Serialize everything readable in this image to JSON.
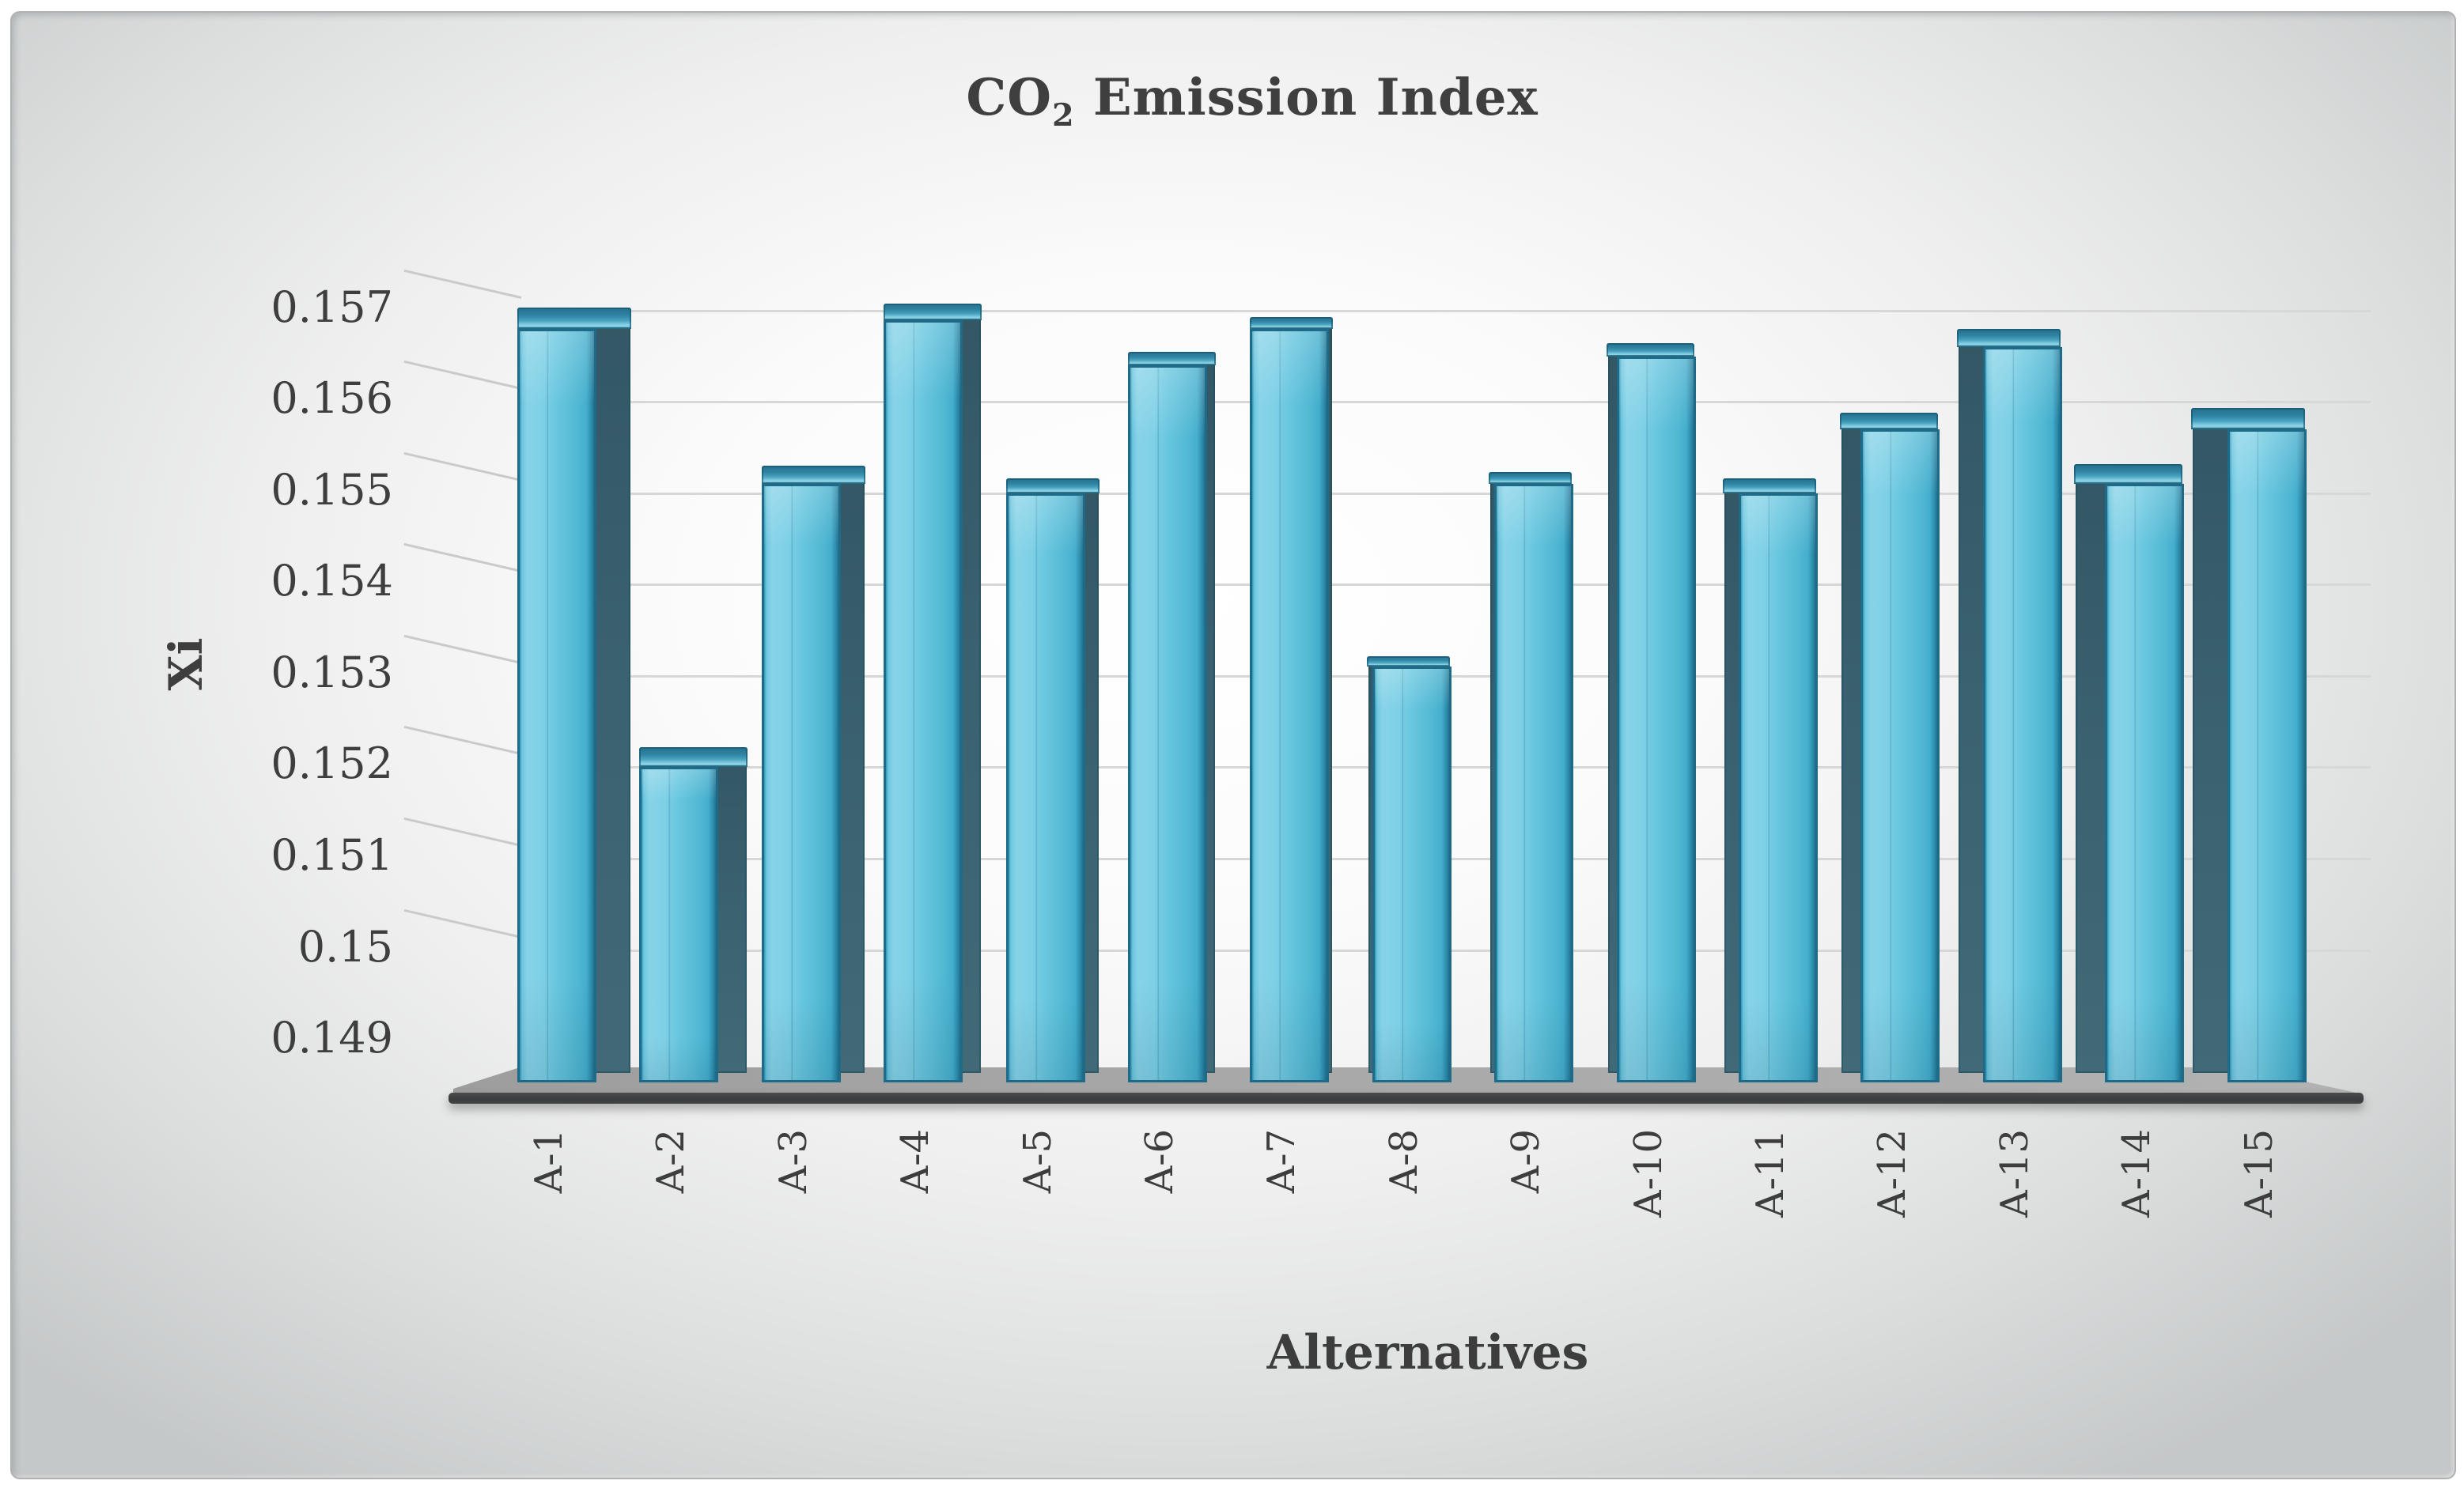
{
  "title": {
    "main_pre": "CO",
    "subscript": "2",
    "main_post": " Emission Index"
  },
  "y_axis": {
    "title": "Xi",
    "tick_labels": [
      "0.157",
      "0.156",
      "0.155",
      "0.154",
      "0.153",
      "0.152",
      "0.151",
      "0.15",
      "0.149"
    ]
  },
  "x_axis": {
    "title": "Alternatives"
  },
  "chart_data": {
    "type": "bar",
    "title": "CO2 Emission Index",
    "xlabel": "Alternatives",
    "ylabel": "Xi",
    "categories": [
      "A-1",
      "A-2",
      "A-3",
      "A-4",
      "A-5",
      "A-6",
      "A-7",
      "A-8",
      "A-9",
      "A-10",
      "A-11",
      "A-12",
      "A-13",
      "A-14",
      "A-15"
    ],
    "values": [
      0.1568,
      0.152,
      0.1551,
      0.1569,
      0.155,
      0.1564,
      0.1568,
      0.1531,
      0.1551,
      0.1565,
      0.155,
      0.1557,
      0.1566,
      0.1551,
      0.1557
    ],
    "ylim": [
      0.149,
      0.157
    ],
    "ytick_step": 0.001,
    "grid": true,
    "legend": "none",
    "style": "3d-beveled-columns"
  },
  "colors": {
    "bar_front": "#5ec0da",
    "bar_front_highlight": "#87d3e8",
    "bar_outline": "#1d6b88",
    "bar_side": "#3a6170",
    "bar_cap": "#3b97b4",
    "gridline": "#d7d7d7",
    "text": "#3e3e3e",
    "floor_top": "#a8a8a8",
    "floor_edge": "#3a3c3d",
    "background_edge": "#c5c8c8",
    "background_center": "#ffffff"
  }
}
